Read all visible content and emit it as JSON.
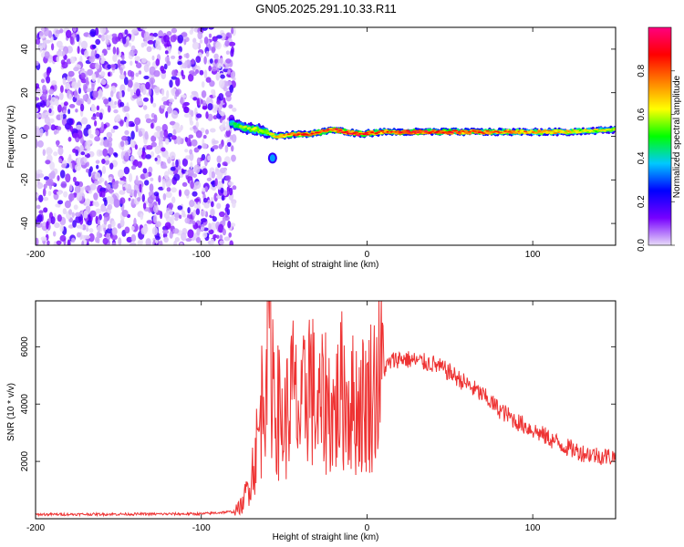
{
  "figure_title": "GN05.2025.291.10.33.R11",
  "chart_data": [
    {
      "type": "heatmap",
      "title": "",
      "xlabel": "Height of straight line (km)",
      "ylabel": "Frequency (Hz)",
      "xlim": [
        -200,
        150
      ],
      "ylim": [
        -50,
        50
      ],
      "xticks": [
        -200,
        -100,
        0,
        100
      ],
      "yticks": [
        -40,
        -20,
        0,
        20,
        40
      ],
      "colorbar": {
        "label": "Normalized spectral amplitude",
        "range": [
          0,
          1
        ],
        "ticks": [
          0.0,
          0.2,
          0.4,
          0.6,
          0.8
        ],
        "colormap": [
          "#e8dcf8",
          "#7700ff",
          "#0000ff",
          "#00c8ff",
          "#00ff00",
          "#ffff00",
          "#ff8000",
          "#ff0000",
          "#ff0080"
        ]
      },
      "noise_region_km": [
        -200,
        -80
      ],
      "band": [
        {
          "x": -82,
          "f": 6,
          "amp": 0.45
        },
        {
          "x": -75,
          "f": 4,
          "amp": 0.55
        },
        {
          "x": -65,
          "f": 3,
          "amp": 0.6
        },
        {
          "x": -55,
          "f": 0,
          "amp": 0.7
        },
        {
          "x": -45,
          "f": 1,
          "amp": 0.8
        },
        {
          "x": -35,
          "f": 1,
          "amp": 0.85
        },
        {
          "x": -20,
          "f": 3,
          "amp": 0.85
        },
        {
          "x": -5,
          "f": 1,
          "amp": 0.9
        },
        {
          "x": 10,
          "f": 2,
          "amp": 0.8
        },
        {
          "x": 30,
          "f": 2,
          "amp": 0.9
        },
        {
          "x": 60,
          "f": 2,
          "amp": 0.85
        },
        {
          "x": 90,
          "f": 2,
          "amp": 0.75
        },
        {
          "x": 120,
          "f": 2,
          "amp": 0.7
        },
        {
          "x": 150,
          "f": 3,
          "amp": 0.6
        }
      ],
      "secondary_blob": {
        "x": -57,
        "f": -10,
        "amp": 0.35
      }
    },
    {
      "type": "line",
      "title": "",
      "xlabel": "Height of straight line (km)",
      "ylabel": "SNR (10 * v/v)",
      "xlim": [
        -200,
        150
      ],
      "ylim": [
        0,
        7600
      ],
      "xticks": [
        -200,
        -100,
        0,
        100
      ],
      "yticks": [
        2000,
        4000,
        6000
      ],
      "series": [
        {
          "name": "SNR",
          "color": "#ee3333",
          "x": [
            -200,
            -150,
            -100,
            -80,
            -75,
            -70,
            -65,
            -62,
            -60,
            -55,
            -50,
            -45,
            -40,
            -35,
            -30,
            -25,
            -20,
            -15,
            -10,
            -5,
            0,
            5,
            10,
            15,
            20,
            30,
            40,
            50,
            60,
            70,
            80,
            90,
            100,
            110,
            120,
            130,
            140,
            150
          ],
          "y": [
            150,
            160,
            170,
            250,
            500,
            1500,
            3000,
            5000,
            7500,
            4000,
            3200,
            4500,
            3300,
            5200,
            3500,
            4200,
            3600,
            4500,
            4000,
            4000,
            4100,
            4700,
            5200,
            5500,
            5600,
            5500,
            5400,
            5100,
            4700,
            4300,
            3800,
            3400,
            3100,
            2800,
            2500,
            2300,
            2200,
            2150
          ]
        }
      ]
    }
  ]
}
